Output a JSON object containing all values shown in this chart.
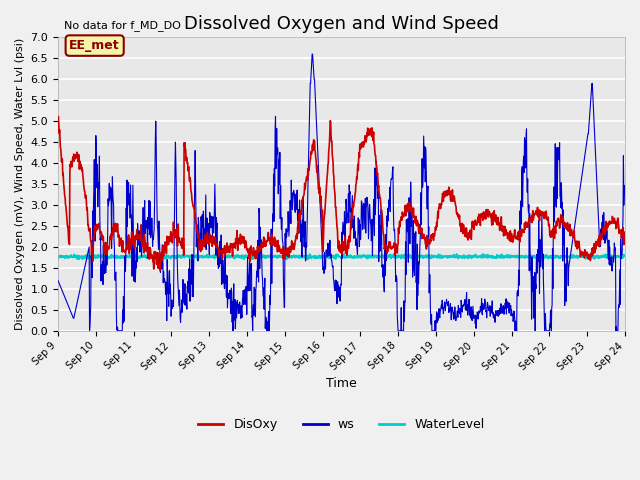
{
  "title": "Dissolved Oxygen and Wind Speed",
  "top_left_note": "No data for f_MD_DO",
  "annotation_box": "EE_met",
  "xlabel": "Time",
  "ylabel": "Dissolved Oxygen (mV), Wind Speed, Water Lvl (psi)",
  "ylim": [
    0.0,
    7.0
  ],
  "yticks": [
    0.0,
    0.5,
    1.0,
    1.5,
    2.0,
    2.5,
    3.0,
    3.5,
    4.0,
    4.5,
    5.0,
    5.5,
    6.0,
    6.5,
    7.0
  ],
  "xtick_labels": [
    "Sep 9",
    "Sep 10",
    "Sep 11",
    "Sep 12",
    "Sep 13",
    "Sep 14",
    "Sep 15",
    "Sep 16",
    "Sep 17",
    "Sep 18",
    "Sep 19",
    "Sep 20",
    "Sep 21",
    "Sep 22",
    "Sep 23",
    "Sep 24"
  ],
  "disoxy_color": "#cc0000",
  "ws_color": "#0000cc",
  "waterlevel_color": "#00cccc",
  "waterlevel_value": 1.77,
  "background_color": "#e8e8e8",
  "grid_color": "#ffffff",
  "legend_labels": [
    "DisOxy",
    "ws",
    "WaterLevel"
  ],
  "legend_colors": [
    "#cc0000",
    "#0000cc",
    "#00cccc"
  ]
}
